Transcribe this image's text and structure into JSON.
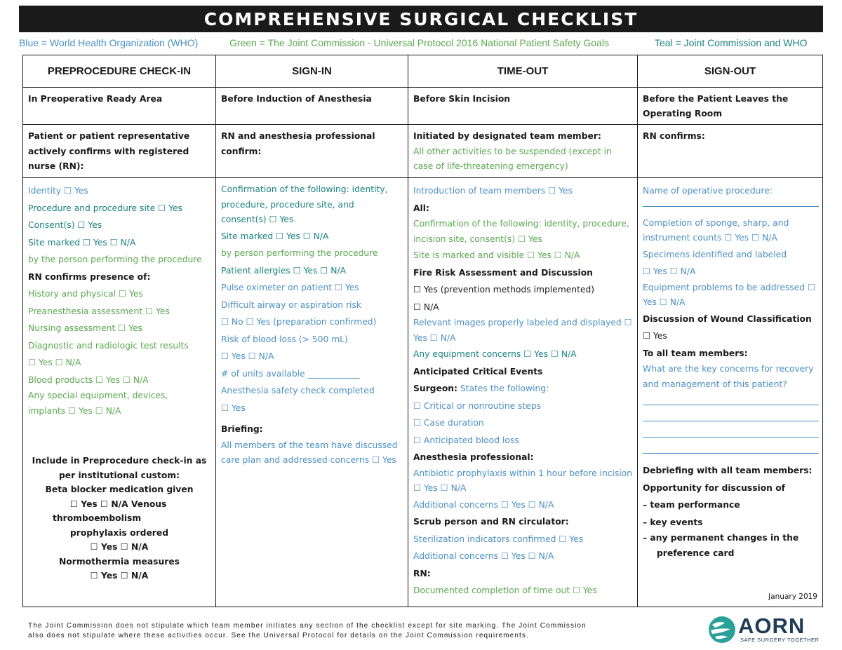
{
  "title": "COMPREHENSIVE SURGICAL CHECKLIST",
  "legend": {
    "blue": "Blue = World Health Organization (WHO)",
    "green": "Green = The Joint Commission - Universal Protocol 2016 National Patient Safety Goals",
    "teal": "Teal = Joint Commission and WHO",
    "colors": {
      "blue": "#4a90c2",
      "green": "#5aa84f",
      "teal": "#19837f"
    }
  },
  "columns": {
    "c1": {
      "header": "PREPROCEDURE CHECK-IN",
      "when": "In Preoperative Ready Area",
      "who": "Patient or patient representative actively confirms with registered nurse (RN):",
      "items": [
        "Identity ☐ Yes",
        "Procedure and procedure site ☐ Yes",
        "Consent(s) ☐ Yes",
        "Site marked ☐ Yes ☐ N/A",
        "by the person performing the procedure",
        "RN confirms presence of:",
        "History and physical ☐ Yes",
        "Preanesthesia assessment ☐ Yes",
        "Nursing assessment ☐ Yes",
        "Diagnostic and radiologic test results",
        "☐ Yes ☐ N/A",
        "Blood products ☐ Yes ☐ N/A",
        "Any special equipment, devices,",
        "implants ☐ Yes ☐ N/A"
      ],
      "custom": [
        "Include in Preprocedure check-in as",
        "per institutional custom:",
        "Beta blocker medication given",
        "☐ Yes ☐ N/A Venous",
        "thromboembolism",
        "prophylaxis ordered",
        "☐ Yes ☐ N/A",
        "Normothermia measures",
        "☐ Yes ☐ N/A"
      ]
    },
    "c2": {
      "header": "SIGN-IN",
      "when": "Before Induction of Anesthesia",
      "who": "RN and anesthesia professional confirm:",
      "items": [
        "Confirmation of the following: identity,",
        "procedure, procedure site, and",
        "consent(s) ☐ Yes",
        "Site marked ☐ Yes ☐ N/A",
        "by person performing the procedure",
        "Patient allergies ☐ Yes ☐ N/A",
        "Pulse oximeter on patient ☐ Yes",
        "Difficult airway or aspiration risk",
        "☐ No ☐ Yes (preparation confirmed)",
        "Risk of blood loss (> 500 mL)",
        "☐ Yes ☐ N/A",
        "# of units available ____________",
        "Anesthesia safety check completed",
        "☐ Yes",
        "Briefing:",
        "All members of the team have discussed",
        "care plan and addressed concerns ☐ Yes"
      ]
    },
    "c3": {
      "header": "TIME-OUT",
      "when": "Before Skin Incision",
      "who": "Initiated by designated team member:",
      "who_note": "All other activities to be suspended (except in case of life-threatening emergency)",
      "items": [
        "Introduction of team members ☐ Yes",
        "All:",
        "Confirmation of the following: identity, procedure,",
        "incision site, consent(s) ☐ Yes",
        "Site is marked and visible ☐ Yes ☐ N/A",
        "Fire Risk Assessment and Discussion",
        "☐ Yes (prevention methods implemented)",
        "☐ N/A",
        "Relevant images properly labeled and displayed ☐",
        "Yes ☐ N/A",
        "Any equipment concerns ☐ Yes ☐ N/A",
        "Anticipated Critical Events",
        "Surgeon:",
        "States the following:",
        "☐ Critical or nonroutine steps",
        "☐ Case duration",
        "☐ Anticipated blood loss",
        "Anesthesia professional:",
        "Antibiotic prophylaxis within 1 hour before incision",
        "☐ Yes ☐ N/A",
        "Additional concerns ☐ Yes ☐ N/A",
        "Scrub person and RN circulator:",
        "Sterilization indicators confirmed ☐ Yes",
        "Additional concerns ☐ Yes ☐ N/A",
        "RN:",
        "Documented completion of time out ☐ Yes"
      ]
    },
    "c4": {
      "header": "SIGN-OUT",
      "when": "Before the Patient Leaves the Operating Room",
      "who": "RN confirms:",
      "items": [
        "Name of operative procedure:",
        "Completion of sponge, sharp, and",
        "instrument counts ☐ Yes ☐ N/A",
        "Specimens identified and labeled",
        "☐ Yes ☐ N/A",
        "Equipment problems to be addressed ☐",
        "Yes ☐ N/A",
        "Discussion of Wound Classification",
        "☐ Yes",
        "To all team members:",
        "What are the key concerns for recovery",
        "and management of this patient?",
        "Debriefing with all team members:",
        "Opportunity for discussion of",
        "–   team performance",
        "–   key events",
        "–   any permanent changes in the",
        "preference card"
      ],
      "date": "January 2019"
    }
  },
  "footer": {
    "line1": "The Joint Commission does not stipulate which team member initiates any section of the checklist except for site marking. The Joint Commission",
    "line2": "also does not stipulate where these activities occur. See the Universal Protocol for details on the Joint Commission requirements."
  },
  "logo": {
    "name": "AORN",
    "tagline": "SAFE SURGERY TOGETHER",
    "icon": "aorn-globe-icon"
  }
}
